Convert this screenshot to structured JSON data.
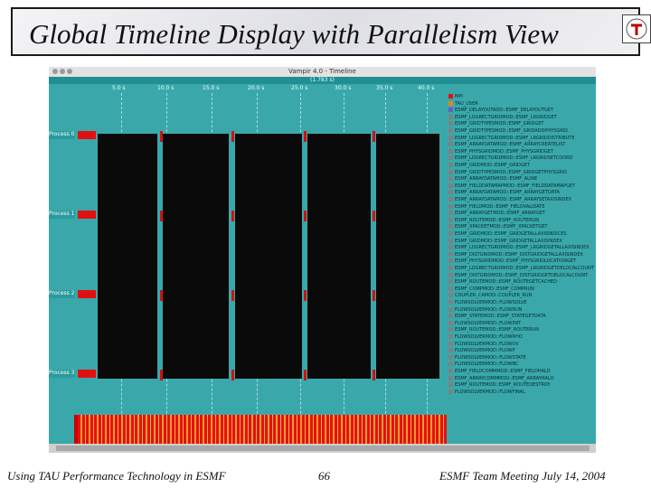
{
  "slide": {
    "title": "Global Timeline Display with Parallelism View",
    "footer_left": "Using TAU Performance Technology in ESMF",
    "page_number": "66",
    "footer_right": "ESMF Team Meeting July 14, 2004"
  },
  "window": {
    "title": "Vampir 4.0 - Timeline",
    "zoom_info": "(1.783 s)"
  },
  "axis_ticks": [
    "5.0 s",
    "10.0 s",
    "15.0 s",
    "20.0 s",
    "25.0 s",
    "30.0 s",
    "35.0 s",
    "40.0 s"
  ],
  "processes": [
    "Process 0",
    "Process 1",
    "Process 2",
    "Process 3"
  ],
  "legend": [
    {
      "label": "MPI",
      "color": "#e01010"
    },
    {
      "label": "TAU_USER",
      "color": "#f08020"
    },
    {
      "label": "ESMF_DELAYOUTADD::ESMF_DELAYOUTGET",
      "color": "#6060c0"
    },
    {
      "label": "ESMF_LOGRECTGRIDMOD::ESMF_LRGRIDGET",
      "color": "#808080"
    },
    {
      "label": "ESMF_GRIDTYPESMOD::ESMF_GRIDGET",
      "color": "#808080"
    },
    {
      "label": "ESMF_GRIDTYPESMOD::ESMF_GRIDADDPHYSGRID",
      "color": "#808080"
    },
    {
      "label": "ESMF_LOGRECTGRIDMOD::ESMF_LRGRIDDISTRIBUTE",
      "color": "#808080"
    },
    {
      "label": "ESMF_ARRAYDATAMOD::ESMF_ARRAYCREATELIST",
      "color": "#808080"
    },
    {
      "label": "ESMF_PHYSGRIDMOD::ESMF_PHYSGRIDGET",
      "color": "#808080"
    },
    {
      "label": "ESMF_LOGRECTGRIDMOD::ESMF_LRGRIDSETCOORD",
      "color": "#808080"
    },
    {
      "label": "ESMF_GRIDMOD::ESMF_GRIDGET",
      "color": "#808080"
    },
    {
      "label": "ESMF_GRIDTYPESMOD::ESMF_GRIDGETPHYSGRID",
      "color": "#808080"
    },
    {
      "label": "ESMF_ARRAYDATAMOD::ESMF_ALINE",
      "color": "#808080"
    },
    {
      "label": "ESMF_FIELDDATAMAPMOD::ESMF_FIELDDATAMAPGET",
      "color": "#808080"
    },
    {
      "label": "ESMF_ARRAYDATAMOD::ESMF_ARRAYGETDATA",
      "color": "#808080"
    },
    {
      "label": "ESMF_ARRAYDATAMOD::ESMF_ARRAYSETAXISINDEX",
      "color": "#808080"
    },
    {
      "label": "ESMF_FIELDMOD::ESMF_FIELDVALIDATE",
      "color": "#808080"
    },
    {
      "label": "ESMF_ARRAYGETMOD::ESMF_ARRAYGET",
      "color": "#808080"
    },
    {
      "label": "ESMF_ROUTEMOD::ESMF_ROUTERUN",
      "color": "#808080"
    },
    {
      "label": "ESMF_XPACKETMOD::ESMF_XPACKETGET",
      "color": "#808080"
    },
    {
      "label": "ESMF_GRIDMOD::ESMF_GRIDGETALLAXISINDICES",
      "color": "#808080"
    },
    {
      "label": "ESMF_GRIDMOD::ESMF_GRIDGETALLAXISINDEX",
      "color": "#808080"
    },
    {
      "label": "ESMF_LOGRECTGRIDMOD::ESMF_LRGRIDGETALLAXISINDEX",
      "color": "#808080"
    },
    {
      "label": "ESMF_DISTGRIDMOD::ESMF_DISTGRIDGETALLAXISINDEX",
      "color": "#808080"
    },
    {
      "label": "ESMF_PHYSGRIDMOD::ESMF_PHYSGRIDLOCATIONGET",
      "color": "#808080"
    },
    {
      "label": "ESMF_LOGRECTGRIDMOD::ESMF_LRGRIDGETDELOCALCOUNT",
      "color": "#808080"
    },
    {
      "label": "ESMF_DISTGRIDMOD::ESMF_DISTGRIDGETDELOCALCOUNT",
      "color": "#808080"
    },
    {
      "label": "ESMF_ROUTEMOD::ESMF_ROUTEGETCACHED",
      "color": "#808080"
    },
    {
      "label": "ESMF_COMPMOD::ESMF_COMPRUN",
      "color": "#808080"
    },
    {
      "label": "COUPLER_CAMOD::COUPLER_RUN",
      "color": "#808080"
    },
    {
      "label": "FLOWSOLVERMOD::FLOWSOLVE",
      "color": "#808080"
    },
    {
      "label": "FLOWSOLVERMOD::FLOWRUN",
      "color": "#808080"
    },
    {
      "label": "ESMF_STATEMOD::ESMF_STATEGETDATA",
      "color": "#808080"
    },
    {
      "label": "FLOWSOLVERMOD::FLOWINIT",
      "color": "#808080"
    },
    {
      "label": "ESMF_ROUTEMOD::ESMF_ROUTERUN",
      "color": "#808080"
    },
    {
      "label": "FLOWSOLVERMOD::FLOWRHO",
      "color": "#808080"
    },
    {
      "label": "FLOWSOLVERMOD::FLOWUV",
      "color": "#808080"
    },
    {
      "label": "FLOWSOLVERMOD::FLOWP",
      "color": "#808080"
    },
    {
      "label": "FLOWSOLVERMOD::FLOWSTATE",
      "color": "#808080"
    },
    {
      "label": "FLOWSOLVERMOD::FLOWBC",
      "color": "#808080"
    },
    {
      "label": "ESMF_FIELDCOMMMOD::ESMF_FIELDHALO",
      "color": "#808080"
    },
    {
      "label": "ESMF_ARRAYCOMMMOD::ESMF_ARRAYHALO",
      "color": "#808080"
    },
    {
      "label": "ESMF_ROUTEMOD::ESMF_ROUTEDESTROY",
      "color": "#808080"
    },
    {
      "label": "FLOWSOLVERMOD::FLOWFINAL",
      "color": "#808080"
    }
  ]
}
